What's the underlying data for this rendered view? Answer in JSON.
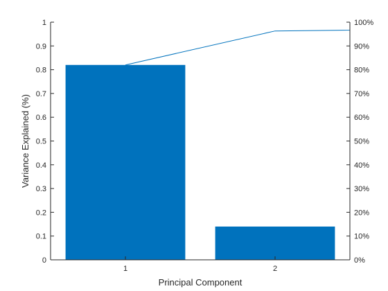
{
  "chart_data": {
    "type": "bar",
    "categories": [
      "1",
      "2"
    ],
    "series": [
      {
        "values": [
          0.82,
          0.14
        ],
        "axis": "left",
        "kind": "bar",
        "color": "#0072BD"
      },
      {
        "values": [
          0.82,
          0.963,
          0.97
        ],
        "x": [
          1,
          2,
          3
        ],
        "axis": "right",
        "kind": "line",
        "color": "#0072BD"
      }
    ],
    "xlabel": "Principal Component",
    "ylabel": "Variance Explained (%)",
    "xlim": [
      0.5,
      2.5
    ],
    "ylim": [
      0,
      1
    ],
    "y2lim": [
      0,
      1
    ],
    "yticks": [
      "0",
      "0.1",
      "0.2",
      "0.3",
      "0.4",
      "0.5",
      "0.6",
      "0.7",
      "0.8",
      "0.9",
      "1"
    ],
    "y2ticks": [
      "0%",
      "10%",
      "20%",
      "30%",
      "40%",
      "50%",
      "60%",
      "70%",
      "80%",
      "90%",
      "100%"
    ],
    "grid": false,
    "legend": "none"
  }
}
